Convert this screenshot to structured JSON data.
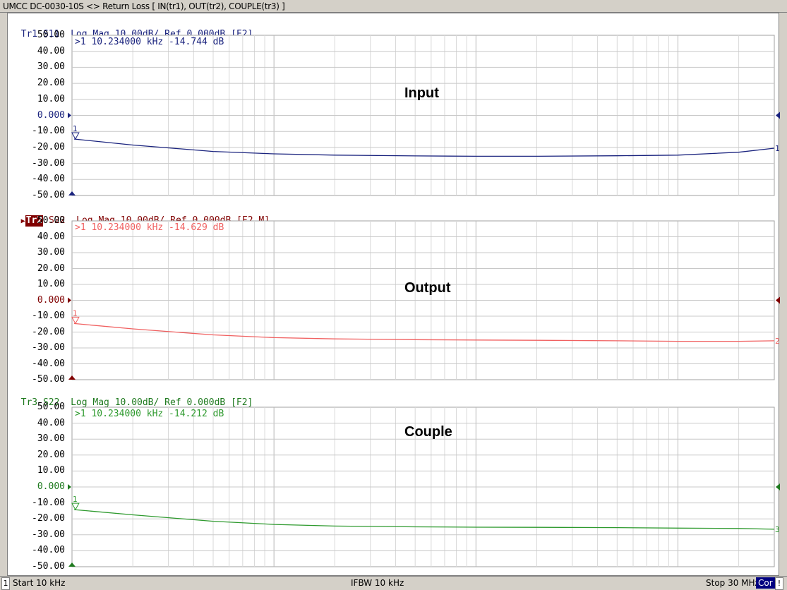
{
  "window": {
    "title": "UMCC  DC-0030-10S <> Return Loss [ IN(tr1), OUT(tr2), COUPLE(tr3) ]"
  },
  "panels": [
    {
      "id": "tr1",
      "header_trace": "Tr1",
      "header_rest": " S11  Log Mag 10.00dB/ Ref 0.000dB [F2]",
      "active": false,
      "color": "#1a237e",
      "label": "Input",
      "marker_readout": ">1  10.234000 kHz -14.744 dB",
      "end_label": "1",
      "y_ticks": [
        "50.00",
        "40.00",
        "30.00",
        "20.00",
        "10.00",
        "0.000",
        "-10.00",
        "-20.00",
        "-30.00",
        "-40.00",
        "-50.00"
      ]
    },
    {
      "id": "tr2",
      "header_trace": "Tr2",
      "header_rest": " S22  Log Mag 10.00dB/ Ref 0.000dB [F2 M]",
      "active": true,
      "color": "#f06060",
      "label": "Output",
      "marker_readout": ">1  10.234000 kHz -14.629 dB",
      "end_label": "2",
      "y_ticks": [
        "50.00",
        "40.00",
        "30.00",
        "20.00",
        "10.00",
        "0.000",
        "-10.00",
        "-20.00",
        "-30.00",
        "-40.00",
        "-50.00"
      ]
    },
    {
      "id": "tr3",
      "header_trace": "Tr3",
      "header_rest": " S22  Log Mag 10.00dB/ Ref 0.000dB [F2]",
      "active": false,
      "color": "#2e9a2e",
      "label": "Couple",
      "marker_readout": ">1  10.234000 kHz -14.212 dB",
      "end_label": "3",
      "y_ticks": [
        "50.00",
        "40.00",
        "30.00",
        "20.00",
        "10.00",
        "0.000",
        "-10.00",
        "-20.00",
        "-30.00",
        "-40.00",
        "-50.00"
      ]
    }
  ],
  "chart_data": [
    {
      "type": "line",
      "title": "Input",
      "x_scale": "log",
      "xlim_hz": [
        10000,
        30000000
      ],
      "ylim": [
        -50,
        50
      ],
      "ylabel": "dB",
      "series": [
        {
          "name": "Tr1 S11",
          "x_hz": [
            10234,
            20000,
            50000,
            100000,
            200000,
            500000,
            1000000,
            2000000,
            5000000,
            10000000,
            20000000,
            30000000
          ],
          "values": [
            -14.744,
            -18.5,
            -22.5,
            -24.0,
            -24.8,
            -25.3,
            -25.5,
            -25.5,
            -25.2,
            -24.8,
            -23.0,
            -20.5
          ]
        }
      ]
    },
    {
      "type": "line",
      "title": "Output",
      "x_scale": "log",
      "xlim_hz": [
        10000,
        30000000
      ],
      "ylim": [
        -50,
        50
      ],
      "ylabel": "dB",
      "series": [
        {
          "name": "Tr2 S22",
          "x_hz": [
            10234,
            20000,
            50000,
            100000,
            200000,
            500000,
            1000000,
            2000000,
            5000000,
            10000000,
            20000000,
            30000000
          ],
          "values": [
            -14.629,
            -18.0,
            -21.8,
            -23.5,
            -24.3,
            -24.8,
            -25.0,
            -25.2,
            -25.5,
            -25.8,
            -25.8,
            -25.5
          ]
        }
      ]
    },
    {
      "type": "line",
      "title": "Couple",
      "x_scale": "log",
      "xlim_hz": [
        10000,
        30000000
      ],
      "ylim": [
        -50,
        50
      ],
      "ylabel": "dB",
      "series": [
        {
          "name": "Tr3 S22",
          "x_hz": [
            10234,
            20000,
            50000,
            100000,
            200000,
            500000,
            1000000,
            2000000,
            5000000,
            10000000,
            20000000,
            30000000
          ],
          "values": [
            -14.212,
            -17.5,
            -21.5,
            -23.5,
            -24.5,
            -25.0,
            -25.2,
            -25.3,
            -25.5,
            -25.8,
            -26.0,
            -26.5
          ]
        }
      ]
    }
  ],
  "status_bar": {
    "channel": "1",
    "start": "Start 10 kHz",
    "ifbw": "IFBW 10 kHz",
    "stop": "Stop 30 MHz",
    "cor": "Cor",
    "warning": "!"
  }
}
